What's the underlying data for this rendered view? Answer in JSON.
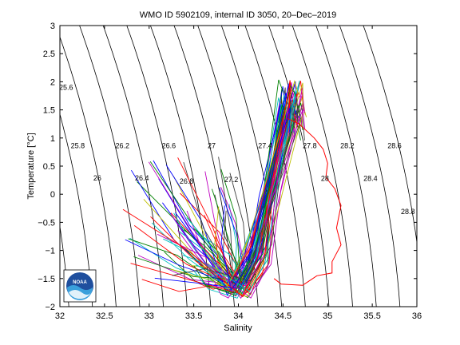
{
  "chart_data": {
    "type": "line",
    "title": "WMO ID 5902109, internal ID 3050, 20–Dec–2019",
    "xlabel": "Salinity",
    "ylabel": "Temperature [°C]",
    "xlim": [
      32,
      36
    ],
    "ylim": [
      -2,
      3
    ],
    "xticks": [
      "32",
      "32.5",
      "33",
      "33.5",
      "34",
      "34.5",
      "35",
      "35.5",
      "36"
    ],
    "yticks": [
      "3",
      "2.5",
      "2",
      "1.5",
      "1",
      "0.5",
      "0",
      "−0.5",
      "−1",
      "−1.5",
      "−2"
    ],
    "isopycnal_labels": [
      {
        "text": "25.6",
        "s": 32.07,
        "t": 1.9
      },
      {
        "text": "25.8",
        "s": 32.2,
        "t": 0.86
      },
      {
        "text": "26",
        "s": 32.42,
        "t": 0.29
      },
      {
        "text": "26.2",
        "s": 32.7,
        "t": 0.86
      },
      {
        "text": "26.4",
        "s": 32.92,
        "t": 0.29
      },
      {
        "text": "26.6",
        "s": 33.22,
        "t": 0.86
      },
      {
        "text": "26.8",
        "s": 33.42,
        "t": 0.23
      },
      {
        "text": "27",
        "s": 33.7,
        "t": 0.86
      },
      {
        "text": "27.2",
        "s": 33.92,
        "t": 0.26
      },
      {
        "text": "27.4",
        "s": 34.3,
        "t": 0.86
      },
      {
        "text": "27.8",
        "s": 34.8,
        "t": 0.86
      },
      {
        "text": "28",
        "s": 34.97,
        "t": 0.28
      },
      {
        "text": "28.2",
        "s": 35.22,
        "t": 0.86
      },
      {
        "text": "28.4",
        "s": 35.48,
        "t": 0.28
      },
      {
        "text": "28.6",
        "s": 35.75,
        "t": 0.86
      },
      {
        "text": "28.8",
        "s": 35.9,
        "t": -0.31
      }
    ],
    "series_main": {
      "description_free": "",
      "color": "#ff0000",
      "values": [
        [
          34.55,
          1.35
        ],
        [
          34.68,
          1.25
        ],
        [
          34.85,
          1.0
        ],
        [
          34.95,
          0.8
        ],
        [
          35.0,
          0.55
        ],
        [
          34.98,
          0.3
        ],
        [
          35.08,
          0.1
        ],
        [
          35.15,
          -0.2
        ],
        [
          35.1,
          -0.6
        ],
        [
          35.15,
          -0.9
        ],
        [
          35.05,
          -1.2
        ],
        [
          35.05,
          -1.4
        ],
        [
          34.88,
          -1.45
        ],
        [
          34.72,
          -1.62
        ],
        [
          34.48,
          -1.6
        ],
        [
          34.4,
          -1.5
        ]
      ]
    },
    "logo_text": "NOAA"
  }
}
